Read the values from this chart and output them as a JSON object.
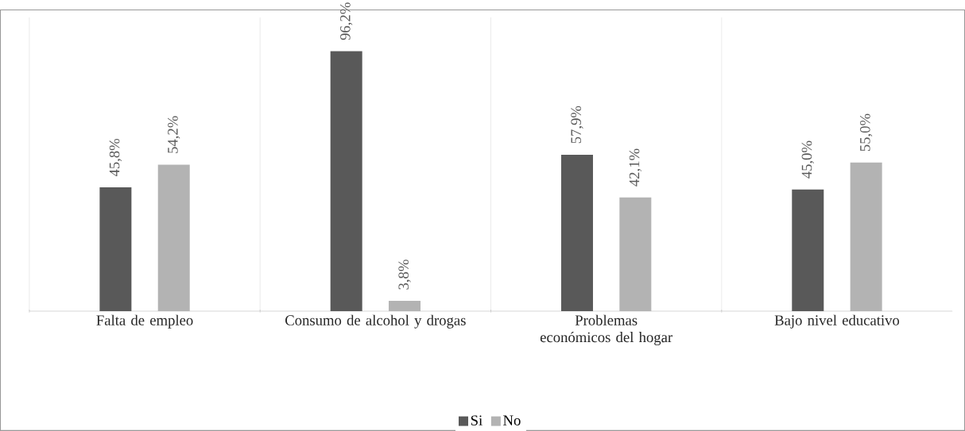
{
  "chart_data": {
    "type": "bar",
    "categories": [
      "Falta de empleo",
      "Consumo de alcohol y drogas",
      "Problemas económicos del hogar",
      "Bajo nivel educativo"
    ],
    "series": [
      {
        "name": "Si",
        "color": "#595959",
        "values": [
          45.8,
          96.2,
          57.9,
          45.0
        ],
        "value_labels": [
          "45,8%",
          "96,2%",
          "57,9%",
          "45,0%"
        ]
      },
      {
        "name": "No",
        "color": "#b3b3b3",
        "values": [
          54.2,
          3.8,
          42.1,
          55.0
        ],
        "value_labels": [
          "54,2%",
          "3,8%",
          "42,1%",
          "55,0%"
        ]
      }
    ],
    "grid": "x",
    "legend": "bottom"
  }
}
